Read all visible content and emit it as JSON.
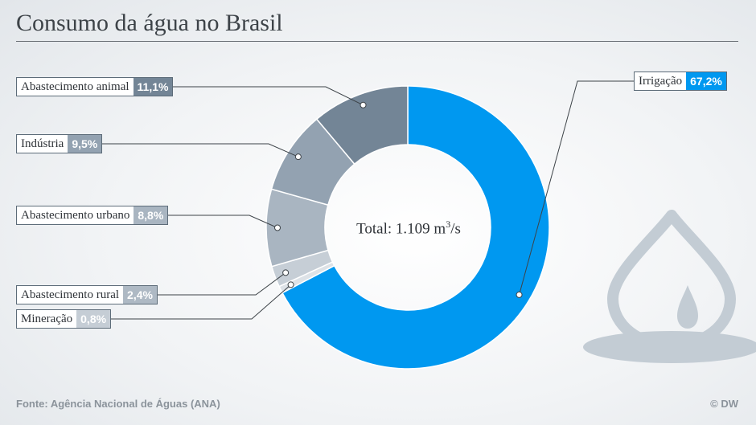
{
  "header": {
    "title": "Consumo da água no Brasil"
  },
  "chart_data": {
    "type": "pie",
    "title": "Consumo da água no Brasil",
    "total_label": {
      "text": "Total: 1.109 m",
      "exp": "3",
      "unit": "/s"
    },
    "slices": [
      {
        "label": "Irrigação",
        "value": 67.2,
        "value_label": "67,2%",
        "color": "#0098f0"
      },
      {
        "label": "Mineração",
        "value": 0.8,
        "value_label": "0,8%",
        "color": "#dde2e7"
      },
      {
        "label": "Abastecimento rural",
        "value": 2.4,
        "value_label": "2,4%",
        "color": "#c6ced6"
      },
      {
        "label": "Abastecimento urbano",
        "value": 8.8,
        "value_label": "8,8%",
        "color": "#a9b5c1"
      },
      {
        "label": "Indústria",
        "value": 9.5,
        "value_label": "9,5%",
        "color": "#93a2b1"
      },
      {
        "label": "Abastecimento animal",
        "value": 11.1,
        "value_label": "11,1%",
        "color": "#738596"
      }
    ]
  },
  "footer": {
    "source": "Fonte: Agência Nacional de Águas (ANA)",
    "credit": "© DW"
  },
  "decoration": {
    "icon": "water-drop-icon",
    "color": "#c3ccd4"
  }
}
